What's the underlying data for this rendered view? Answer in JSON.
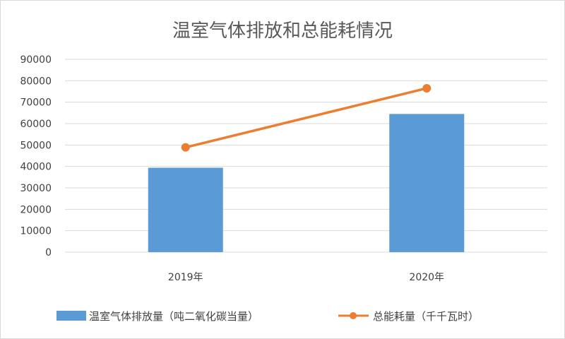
{
  "chart_data": {
    "type": "bar+line",
    "title": "温室气体排放和总能耗情况",
    "categories": [
      "2019年",
      "2020年"
    ],
    "series": [
      {
        "name": "温室气体排放量（吨二氧化碳当量）",
        "type": "bar",
        "color": "#5b9bd5",
        "values": [
          39400,
          64500
        ]
      },
      {
        "name": "总能耗量（千千瓦时）",
        "type": "line",
        "color": "#ed7d31",
        "values": [
          48900,
          76500
        ]
      }
    ],
    "ylim": [
      0,
      90000
    ],
    "yticks": [
      "0",
      "10000",
      "20000",
      "30000",
      "40000",
      "50000",
      "60000",
      "70000",
      "80000",
      "90000"
    ],
    "grid": true,
    "legend": "bottom"
  }
}
